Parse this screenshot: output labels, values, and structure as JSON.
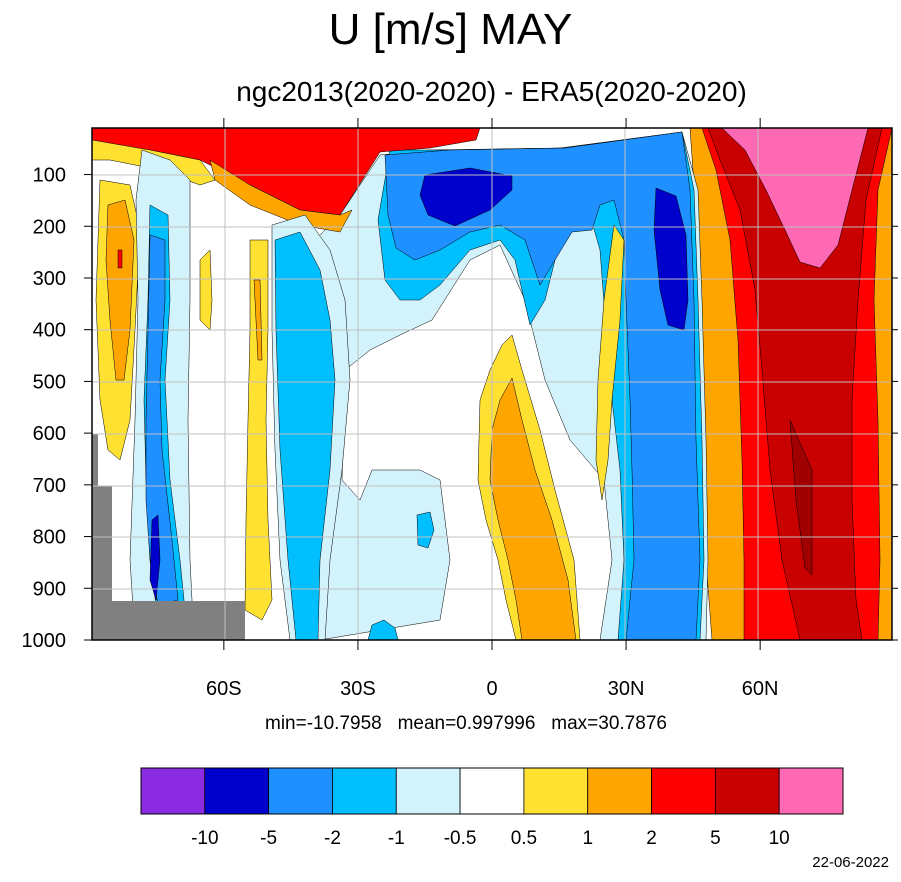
{
  "chart_data": {
    "type": "heatmap",
    "title": "U [m/s] MAY",
    "subtitle": "ngc2013(2020-2020) - ERA5(2020-2020)",
    "x_ticks": [
      {
        "value": -60,
        "label": "60S"
      },
      {
        "value": -30,
        "label": "30S"
      },
      {
        "value": 0,
        "label": "0"
      },
      {
        "value": 30,
        "label": "30N"
      },
      {
        "value": 60,
        "label": "60N"
      }
    ],
    "xlim": [
      -89.5,
      89.5
    ],
    "y_ticks": [
      100,
      200,
      300,
      400,
      500,
      600,
      700,
      800,
      900,
      1000
    ],
    "ylim": [
      10,
      1000
    ],
    "y_inverted": true,
    "stats": {
      "min": "min=-10.7958",
      "mean": "mean=0.997996",
      "max": "max=30.7876"
    },
    "levels": [
      "-10",
      "-5",
      "-2",
      "-1",
      "-0.5",
      "0.5",
      "1",
      "2",
      "5",
      "10"
    ],
    "colors": [
      "#8a2be2",
      "#0000cd",
      "#1e90ff",
      "#00bfff",
      "#d2f3fb",
      "#ffffff",
      "#ffe132",
      "#ffa500",
      "#ff0000",
      "#c80000",
      "#ff69b4"
    ],
    "grid": true,
    "missing_color": "#808080"
  },
  "date": "22-06-2022"
}
